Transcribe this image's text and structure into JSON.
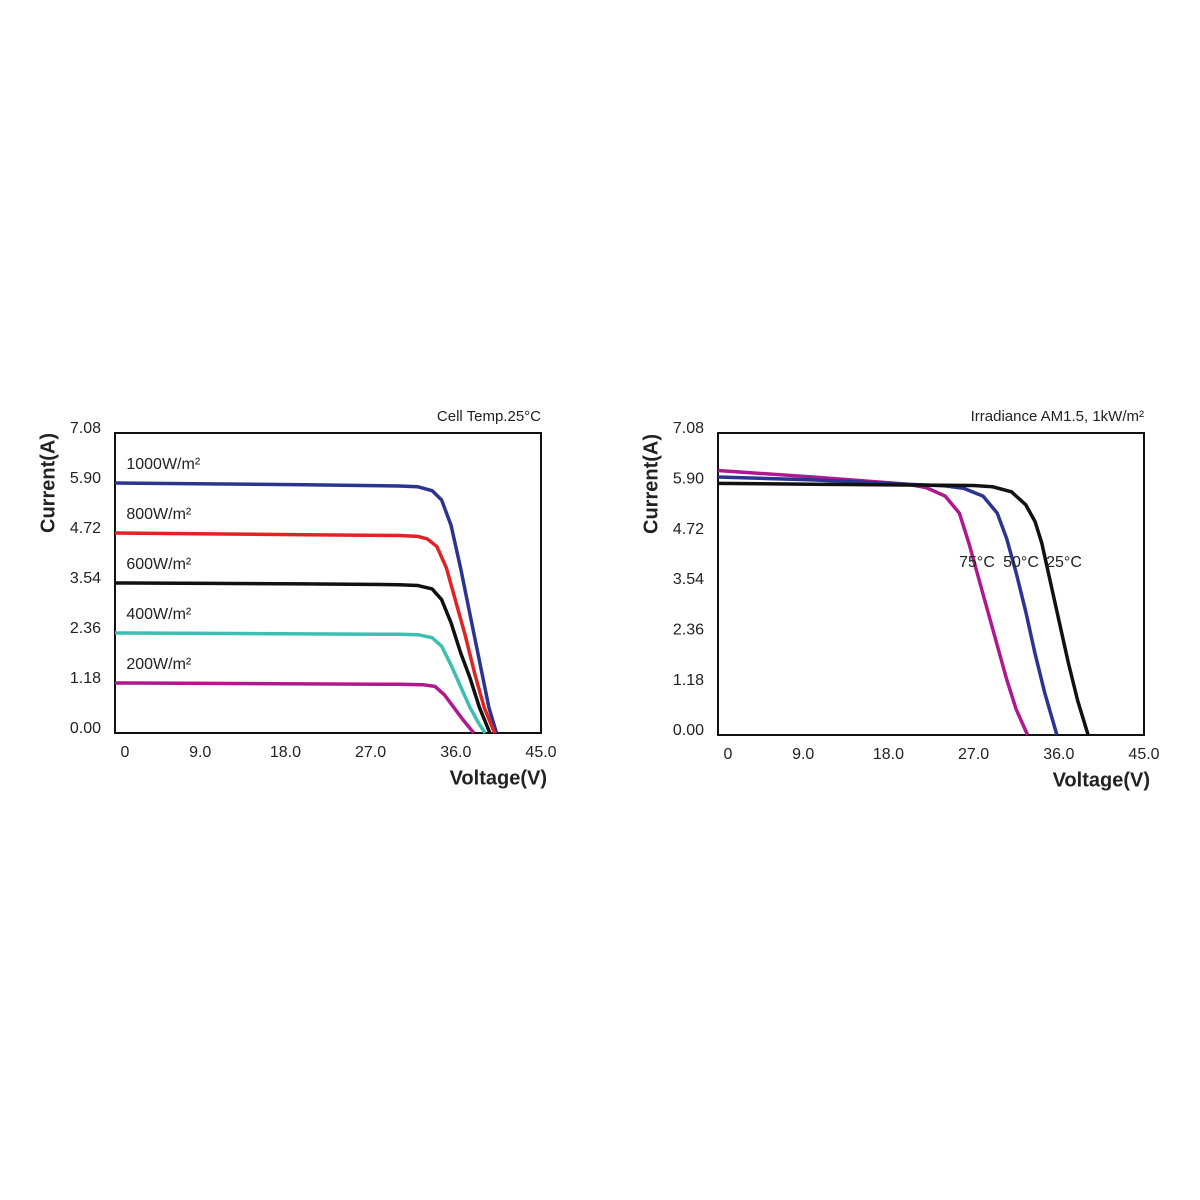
{
  "chart_data": [
    {
      "type": "line",
      "title": "Cell Temp.25°C",
      "x_label": "Voltage(V)",
      "y_label": "Current(A)",
      "xlim": [
        0,
        45
      ],
      "ylim": [
        0,
        7.08
      ],
      "xticks": [
        0,
        {
          "value": 9,
          "label": "9.0"
        },
        {
          "value": 18,
          "label": "18.0"
        },
        {
          "value": 27,
          "label": "27.0"
        },
        {
          "value": 36,
          "label": "36.0"
        },
        {
          "value": 45,
          "label": "45.0"
        }
      ],
      "yticks": [
        {
          "value": 0,
          "label": "0.00"
        },
        1.18,
        2.36,
        3.54,
        4.72,
        {
          "value": 5.9,
          "label": "5.90"
        },
        7.08
      ],
      "series": [
        {
          "name": "1000W/m²",
          "color": "#2b3590",
          "x": [
            0,
            10,
            20,
            30,
            32,
            33.5,
            34.5,
            35.5,
            36.5,
            37.5,
            38.5,
            39.5,
            40.3
          ],
          "values": [
            5.9,
            5.88,
            5.86,
            5.83,
            5.81,
            5.72,
            5.5,
            4.9,
            3.9,
            2.8,
            1.7,
            0.6,
            0
          ]
        },
        {
          "name": "800W/m²",
          "color": "#e02424",
          "x": [
            0,
            10,
            20,
            30,
            32,
            33,
            34,
            35,
            36,
            37,
            38,
            39,
            40.1
          ],
          "values": [
            4.72,
            4.7,
            4.68,
            4.66,
            4.64,
            4.58,
            4.4,
            3.9,
            3.1,
            2.3,
            1.4,
            0.6,
            0
          ]
        },
        {
          "name": "600W/m²",
          "color": "#111111",
          "x": [
            0,
            10,
            20,
            30,
            32,
            33.5,
            34.5,
            35.5,
            36.5,
            37.5,
            38.5,
            39.6
          ],
          "values": [
            3.54,
            3.53,
            3.52,
            3.5,
            3.48,
            3.4,
            3.15,
            2.6,
            1.9,
            1.3,
            0.6,
            0
          ]
        },
        {
          "name": "400W/m²",
          "color": "#3dbfb0",
          "x": [
            0,
            10,
            20,
            30,
            32,
            33.5,
            34.5,
            35.5,
            36.5,
            37.5,
            38.5,
            39.1
          ],
          "values": [
            2.36,
            2.35,
            2.34,
            2.33,
            2.32,
            2.25,
            2.05,
            1.6,
            1.1,
            0.6,
            0.2,
            0
          ]
        },
        {
          "name": "200W/m²",
          "color": "#b0188f",
          "x": [
            0,
            10,
            20,
            30,
            32.5,
            33.8,
            34.8,
            35.8,
            36.8,
            37.9
          ],
          "values": [
            1.18,
            1.17,
            1.16,
            1.15,
            1.14,
            1.1,
            0.9,
            0.6,
            0.3,
            0
          ]
        }
      ]
    },
    {
      "type": "line",
      "title": "Irradiance AM1.5, 1kW/m²",
      "x_label": "Voltage(V)",
      "y_label": "Current(A)",
      "xlim": [
        0,
        45
      ],
      "ylim": [
        0,
        7.08
      ],
      "xticks": [
        0,
        {
          "value": 9,
          "label": "9.0"
        },
        {
          "value": 18,
          "label": "18.0"
        },
        {
          "value": 27,
          "label": "27.0"
        },
        {
          "value": 36,
          "label": "36.0"
        },
        {
          "value": 45,
          "label": "45.0"
        }
      ],
      "yticks": [
        {
          "value": 0,
          "label": "0.00"
        },
        1.18,
        2.36,
        3.54,
        4.72,
        {
          "value": 5.9,
          "label": "5.90"
        },
        7.08
      ],
      "series": [
        {
          "name": "75°C",
          "color": "#b0188f",
          "x": [
            0,
            10,
            20,
            22,
            24,
            25.5,
            26.5,
            27.5,
            28.5,
            29.5,
            30.5,
            31.5,
            32.7
          ],
          "values": [
            6.2,
            6.05,
            5.88,
            5.8,
            5.6,
            5.2,
            4.5,
            3.7,
            2.9,
            2.1,
            1.3,
            0.6,
            0
          ]
        },
        {
          "name": "50°C",
          "color": "#2b3590",
          "x": [
            0,
            10,
            20,
            24,
            26,
            28,
            29.5,
            30.5,
            31.5,
            32.5,
            33.5,
            34.5,
            35.8
          ],
          "values": [
            6.05,
            5.98,
            5.88,
            5.84,
            5.78,
            5.6,
            5.2,
            4.6,
            3.8,
            2.9,
            1.9,
            1,
            0
          ]
        },
        {
          "name": "25°C",
          "color": "#111111",
          "x": [
            0,
            10,
            20,
            27,
            29,
            31,
            32.5,
            33.5,
            34.2,
            35,
            36,
            37,
            38,
            39.1
          ],
          "values": [
            5.9,
            5.88,
            5.86,
            5.85,
            5.82,
            5.7,
            5.4,
            5,
            4.5,
            3.7,
            2.7,
            1.7,
            0.8,
            0
          ]
        }
      ]
    }
  ]
}
